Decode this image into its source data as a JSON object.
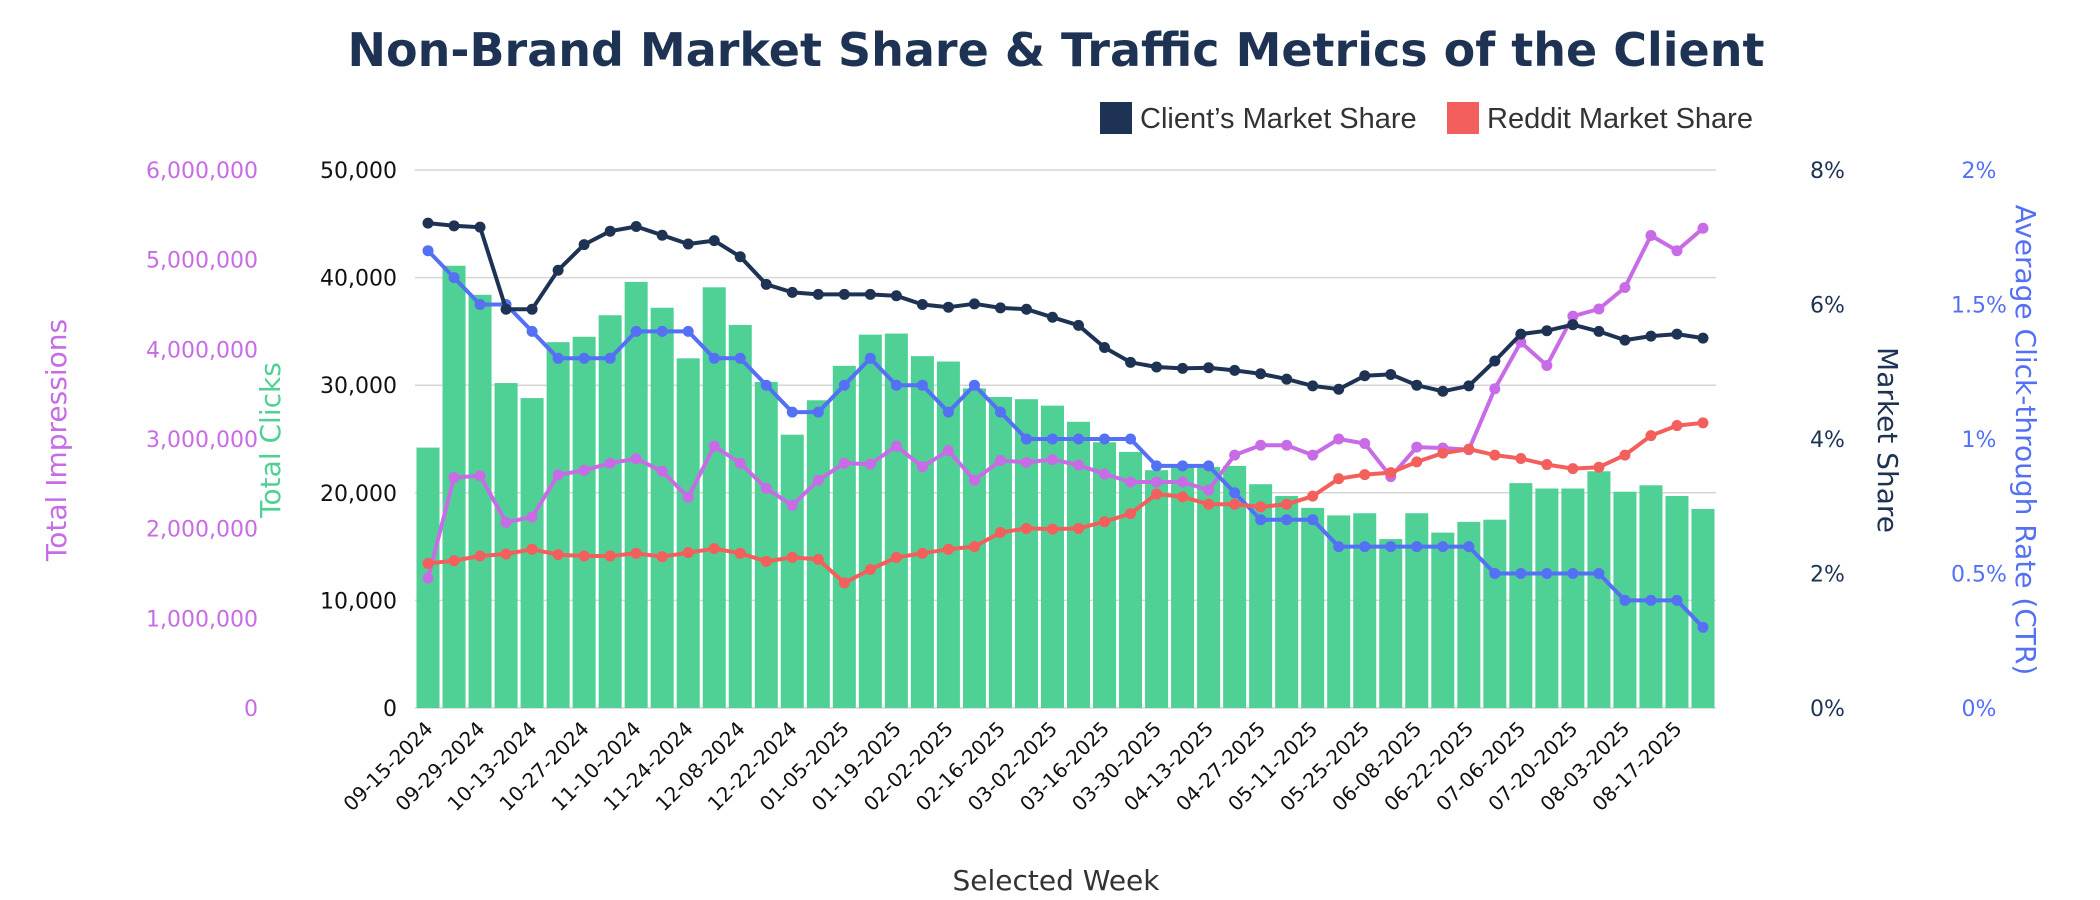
{
  "chart_data": {
    "type": "bar+line",
    "title": "Non-Brand Market Share & Traffic Metrics of the Client",
    "xlabel": "Selected Week",
    "legend": {
      "placement": "top-right",
      "entries": [
        "Client’s Market Share",
        "Reddit Market Share"
      ]
    },
    "grid": true,
    "categories": [
      "09-15-2024",
      "09-22-2024",
      "09-29-2024",
      "10-06-2024",
      "10-13-2024",
      "10-20-2024",
      "10-27-2024",
      "11-03-2024",
      "11-10-2024",
      "11-17-2024",
      "11-24-2024",
      "12-01-2024",
      "12-08-2024",
      "12-15-2024",
      "12-22-2024",
      "12-29-2024",
      "01-05-2025",
      "01-12-2025",
      "01-19-2025",
      "01-26-2025",
      "02-02-2025",
      "02-09-2025",
      "02-16-2025",
      "02-23-2025",
      "03-02-2025",
      "03-09-2025",
      "03-16-2025",
      "03-23-2025",
      "03-30-2025",
      "04-06-2025",
      "04-13-2025",
      "04-20-2025",
      "04-27-2025",
      "05-04-2025",
      "05-11-2025",
      "05-18-2025",
      "05-25-2025",
      "06-01-2025",
      "06-08-2025",
      "06-15-2025",
      "06-22-2025",
      "06-29-2025",
      "07-06-2025",
      "07-13-2025",
      "07-20-2025",
      "07-27-2025",
      "08-03-2025",
      "08-10-2025",
      "08-17-2025",
      "08-24-2025"
    ],
    "xtick_labels": [
      "09-15-2024",
      "09-29-2024",
      "10-13-2024",
      "10-27-2024",
      "11-10-2024",
      "11-24-2024",
      "12-08-2024",
      "12-22-2024",
      "01-05-2025",
      "01-19-2025",
      "02-02-2025",
      "02-16-2025",
      "03-02-2025",
      "03-16-2025",
      "03-30-2025",
      "04-13-2025",
      "04-27-2025",
      "05-11-2025",
      "05-25-2025",
      "06-08-2025",
      "06-22-2025",
      "07-06-2025",
      "07-20-2025",
      "08-03-2025",
      "08-17-2025"
    ],
    "axes": {
      "impressions": {
        "label": "Total Impressions",
        "ylim": [
          0,
          6000000
        ],
        "ticks": [
          "0",
          "1,000,000",
          "2,000,000",
          "3,000,000",
          "4,000,000",
          "5,000,000",
          "6,000,000"
        ],
        "color": "#c86be6"
      },
      "clicks": {
        "label": "Total Clicks",
        "ylim": [
          0,
          50000
        ],
        "ticks": [
          "0",
          "10,000",
          "20,000",
          "30,000",
          "40,000",
          "50,000"
        ],
        "color": "#4fd195"
      },
      "market_share": {
        "label": "Market Share",
        "ylim": [
          0,
          8
        ],
        "ticks": [
          "0%",
          "2%",
          "4%",
          "6%",
          "8%"
        ],
        "color": "#1e3354"
      },
      "ctr": {
        "label": "Average Click-through Rate (CTR)",
        "ylim": [
          0,
          2
        ],
        "ticks": [
          "0%",
          "0.5%",
          "1%",
          "1.5%",
          "2%"
        ],
        "color": "#5470f5"
      }
    },
    "series": [
      {
        "key": "clicks",
        "type": "bar",
        "axis": "clicks",
        "color": "#4fd195",
        "values": [
          24200,
          41100,
          38400,
          30200,
          28800,
          34000,
          34500,
          36500,
          39600,
          37200,
          32500,
          39100,
          35600,
          30300,
          25400,
          28600,
          31800,
          34700,
          34800,
          32700,
          32200,
          29700,
          28900,
          28700,
          28100,
          26600,
          24700,
          23800,
          22100,
          22400,
          22400,
          22500,
          20800,
          19700,
          18600,
          17900,
          18100,
          15700,
          18100,
          16300,
          17300,
          17500,
          20900,
          20400,
          20400,
          22000,
          20100,
          20700,
          19700,
          18500
        ]
      },
      {
        "key": "impressions",
        "type": "line",
        "axis": "impressions",
        "color": "#c86be6",
        "values": [
          1450000,
          2570000,
          2590000,
          2070000,
          2130000,
          2600000,
          2650000,
          2730000,
          2780000,
          2640000,
          2350000,
          2920000,
          2730000,
          2450000,
          2260000,
          2540000,
          2730000,
          2720000,
          2920000,
          2690000,
          2870000,
          2540000,
          2760000,
          2740000,
          2770000,
          2710000,
          2610000,
          2520000,
          2520000,
          2520000,
          2430000,
          2820000,
          2930000,
          2930000,
          2820000,
          3000000,
          2950000,
          2580000,
          2910000,
          2900000,
          2880000,
          3560000,
          4080000,
          3820000,
          4370000,
          4450000,
          4690000,
          5270000,
          5100000,
          5350000
        ]
      },
      {
        "key": "ctr",
        "type": "line",
        "axis": "ctr",
        "color": "#5470f5",
        "values": [
          1.7,
          1.6,
          1.5,
          1.5,
          1.4,
          1.3,
          1.3,
          1.3,
          1.4,
          1.4,
          1.4,
          1.3,
          1.3,
          1.2,
          1.1,
          1.1,
          1.2,
          1.3,
          1.2,
          1.2,
          1.1,
          1.2,
          1.1,
          1.0,
          1.0,
          1.0,
          1.0,
          1.0,
          0.9,
          0.9,
          0.9,
          0.8,
          0.7,
          0.7,
          0.7,
          0.6,
          0.6,
          0.6,
          0.6,
          0.6,
          0.6,
          0.5,
          0.5,
          0.5,
          0.5,
          0.5,
          0.4,
          0.4,
          0.4,
          0.3
        ]
      },
      {
        "key": "client_ms",
        "name": "Client’s Market Share",
        "type": "line",
        "axis": "market_share",
        "color": "#1e3354",
        "values": [
          7.21,
          7.17,
          7.15,
          5.93,
          5.93,
          6.51,
          6.89,
          7.09,
          7.16,
          7.03,
          6.9,
          6.95,
          6.71,
          6.3,
          6.18,
          6.15,
          6.15,
          6.15,
          6.13,
          6.0,
          5.96,
          6.01,
          5.95,
          5.93,
          5.81,
          5.69,
          5.36,
          5.14,
          5.07,
          5.05,
          5.06,
          5.02,
          4.97,
          4.89,
          4.79,
          4.74,
          4.94,
          4.96,
          4.8,
          4.71,
          4.79,
          5.16,
          5.56,
          5.61,
          5.7,
          5.6,
          5.47,
          5.53,
          5.56,
          5.5
        ]
      },
      {
        "key": "reddit_ms",
        "name": "Reddit Market Share",
        "type": "line",
        "axis": "market_share",
        "color": "#f25f5c",
        "values": [
          2.15,
          2.19,
          2.26,
          2.29,
          2.36,
          2.28,
          2.26,
          2.26,
          2.3,
          2.25,
          2.31,
          2.37,
          2.3,
          2.18,
          2.24,
          2.21,
          1.86,
          2.06,
          2.24,
          2.3,
          2.36,
          2.4,
          2.61,
          2.67,
          2.66,
          2.67,
          2.77,
          2.89,
          3.18,
          3.14,
          3.03,
          3.03,
          2.99,
          3.03,
          3.15,
          3.41,
          3.47,
          3.5,
          3.66,
          3.79,
          3.85,
          3.76,
          3.71,
          3.62,
          3.56,
          3.58,
          3.76,
          4.05,
          4.2,
          4.24
        ]
      }
    ]
  }
}
